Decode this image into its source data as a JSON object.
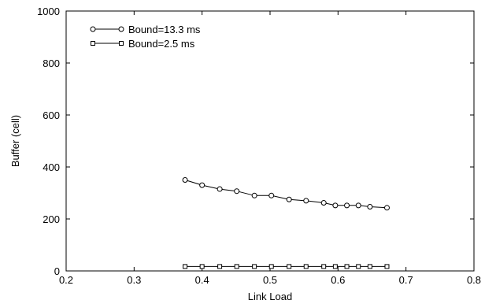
{
  "chart_data": {
    "type": "line",
    "title": "",
    "xlabel": "Link Load",
    "ylabel": "Buffer (cell)",
    "xlim": [
      0.2,
      0.8
    ],
    "ylim": [
      0,
      1000
    ],
    "xticks": [
      "0.2",
      "0.3",
      "0.4",
      "0.5",
      "0.6",
      "0.7",
      "0.8"
    ],
    "yticks": [
      "0",
      "200",
      "400",
      "600",
      "800",
      "1000"
    ],
    "grid": false,
    "legend_position": "top-left",
    "series": [
      {
        "name": "Bound=13.3 ms",
        "marker": "circle",
        "color": "#000000",
        "x": [
          0.375,
          0.4,
          0.426,
          0.451,
          0.477,
          0.502,
          0.528,
          0.553,
          0.579,
          0.596,
          0.613,
          0.63,
          0.647,
          0.672
        ],
        "y": [
          350,
          330,
          315,
          307,
          290,
          290,
          275,
          270,
          262,
          252,
          252,
          252,
          247,
          243
        ]
      },
      {
        "name": "Bound=2.5 ms",
        "marker": "square",
        "color": "#000000",
        "x": [
          0.375,
          0.4,
          0.426,
          0.451,
          0.477,
          0.502,
          0.528,
          0.553,
          0.579,
          0.596,
          0.613,
          0.63,
          0.647,
          0.672
        ],
        "y": [
          17,
          17,
          17,
          17,
          17,
          17,
          17,
          17,
          17,
          17,
          17,
          17,
          17,
          17
        ]
      }
    ]
  }
}
